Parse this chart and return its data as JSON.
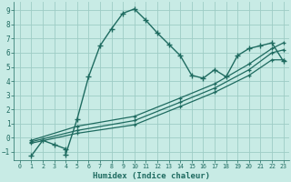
{
  "xlabel": "Humidex (Indice chaleur)",
  "xlim": [
    -0.5,
    23.5
  ],
  "ylim": [
    -1.6,
    9.6
  ],
  "xticks": [
    0,
    1,
    2,
    3,
    4,
    5,
    6,
    7,
    8,
    9,
    10,
    11,
    12,
    13,
    14,
    15,
    16,
    17,
    18,
    19,
    20,
    21,
    22,
    23
  ],
  "yticks": [
    -1,
    0,
    1,
    2,
    3,
    4,
    5,
    6,
    7,
    8,
    9
  ],
  "bg_color": "#c8ebe5",
  "grid_color": "#9dccc5",
  "line_color": "#1e6b60",
  "main_line": {
    "x": [
      1,
      2,
      3,
      4,
      4,
      5,
      6,
      7,
      8,
      9,
      10,
      11,
      12,
      13,
      14,
      15,
      16,
      17,
      18,
      19,
      20,
      21,
      22,
      23
    ],
    "y": [
      -1.3,
      -0.2,
      -0.5,
      -0.8,
      -1.2,
      1.3,
      4.3,
      6.5,
      7.7,
      8.8,
      9.1,
      8.3,
      7.4,
      6.6,
      5.8,
      4.4,
      4.2,
      4.8,
      4.3,
      5.8,
      6.3,
      6.5,
      6.7,
      5.4
    ]
  },
  "diag_lines": [
    {
      "x": [
        1,
        5,
        10,
        14,
        17,
        20,
        22,
        23
      ],
      "y": [
        -0.2,
        0.8,
        1.5,
        2.8,
        3.8,
        5.2,
        6.3,
        6.7
      ]
    },
    {
      "x": [
        1,
        5,
        10,
        14,
        17,
        20,
        22,
        23
      ],
      "y": [
        -0.3,
        0.5,
        1.2,
        2.5,
        3.5,
        4.8,
        6.0,
        6.2
      ]
    },
    {
      "x": [
        1,
        5,
        10,
        14,
        17,
        20,
        22,
        23
      ],
      "y": [
        -0.4,
        0.3,
        0.9,
        2.2,
        3.2,
        4.4,
        5.5,
        5.5
      ]
    }
  ]
}
